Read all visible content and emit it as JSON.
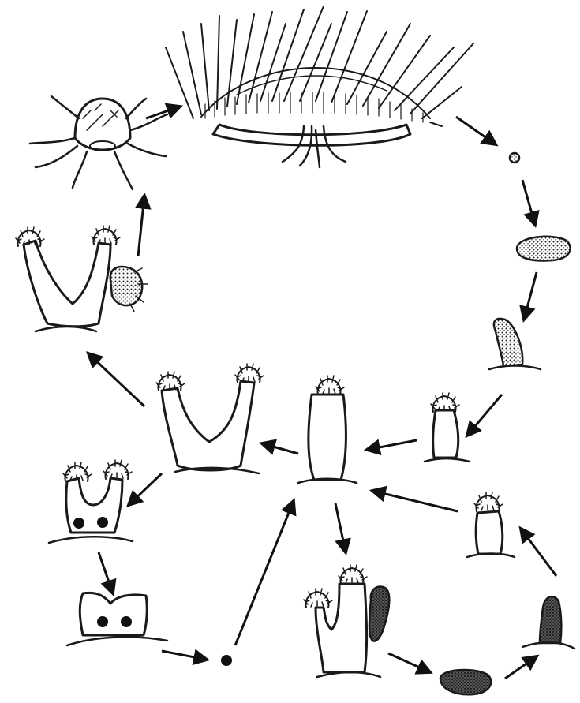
{
  "diagram": {
    "type": "life-cycle",
    "stages": [
      {
        "id": "medusa-adult",
        "icon": "jellyfish-medusa-icon"
      },
      {
        "id": "egg",
        "icon": "egg-icon"
      },
      {
        "id": "planula-free",
        "icon": "planula-icon"
      },
      {
        "id": "planula-settled",
        "icon": "settled-planula-icon"
      },
      {
        "id": "young-polyp",
        "icon": "polyp-icon"
      },
      {
        "id": "polyp",
        "icon": "polyp-icon"
      },
      {
        "id": "forked-polyp",
        "icon": "forked-polyp-icon"
      },
      {
        "id": "polyp-budding-medusa",
        "icon": "forked-polyp-icon"
      },
      {
        "id": "young-medusa",
        "icon": "jellyfish-medusa-icon"
      },
      {
        "id": "polyp-with-podocysts",
        "icon": "polyp-icon"
      },
      {
        "id": "podocyst-base",
        "icon": "cyst-icon"
      },
      {
        "id": "cyst",
        "icon": "egg-icon"
      },
      {
        "id": "polyp-with-bud",
        "icon": "polyp-icon"
      },
      {
        "id": "bud-free",
        "icon": "planula-icon"
      },
      {
        "id": "bud-settled",
        "icon": "settled-planula-icon"
      },
      {
        "id": "small-polyp",
        "icon": "polyp-icon"
      }
    ],
    "colors": {
      "ink": "#1a1a1a",
      "background": "#ffffff"
    }
  }
}
